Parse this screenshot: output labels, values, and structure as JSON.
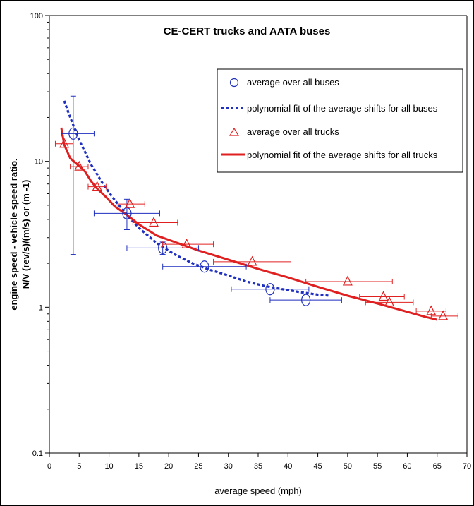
{
  "chart_data": {
    "type": "scatter",
    "title": "CE-CERT trucks and AATA buses",
    "xlabel": "average speed (mph)",
    "ylabel_line1": "engine speed - vehicle speed ratio.",
    "ylabel_line2": "N/V   (rev/s)/(m/s) or (m   -1)",
    "xlim": [
      0,
      70
    ],
    "ylim": [
      0.1,
      100
    ],
    "yscale": "log",
    "grid": false,
    "legend_position": "top-right",
    "x_ticks": [
      0,
      5,
      10,
      15,
      20,
      25,
      30,
      35,
      40,
      45,
      50,
      55,
      60,
      65,
      70
    ],
    "y_ticks": [
      {
        "value": 0.1,
        "label": "0.1"
      },
      {
        "value": 1,
        "label": "1"
      },
      {
        "value": 10,
        "label": "10"
      },
      {
        "value": 100,
        "label": "100"
      }
    ],
    "colors": {
      "buses": "#1f2fbf",
      "trucks": "#e02020"
    },
    "series": [
      {
        "name": "average over all buses",
        "kind": "points",
        "marker": "circle",
        "color": "#1f2fbf",
        "points": [
          {
            "x": 4.0,
            "y": 15.5,
            "xerr": [
              2.0,
              7.5
            ],
            "yerr": [
              2.3,
              28
            ]
          },
          {
            "x": 13.0,
            "y": 4.4,
            "xerr": [
              7.5,
              18.5
            ],
            "yerr": [
              3.4,
              5.5
            ]
          },
          {
            "x": 19.0,
            "y": 2.55,
            "xerr": [
              13.0,
              25.0
            ],
            "yerr": [
              2.3,
              2.8
            ]
          },
          {
            "x": 26.0,
            "y": 1.9,
            "xerr": [
              19.0,
              33.0
            ],
            "yerr": null
          },
          {
            "x": 37.0,
            "y": 1.33,
            "xerr": [
              30.5,
              43.5
            ],
            "yerr": null
          },
          {
            "x": 43.0,
            "y": 1.12,
            "xerr": [
              37.0,
              49.0
            ],
            "yerr": null
          }
        ]
      },
      {
        "name": "polynomial fit of the average shifts for all buses",
        "kind": "line",
        "style": "dashed",
        "color": "#1f2fbf",
        "points": [
          {
            "x": 2.5,
            "y": 26
          },
          {
            "x": 3.5,
            "y": 20
          },
          {
            "x": 5,
            "y": 14
          },
          {
            "x": 7,
            "y": 9.5
          },
          {
            "x": 9,
            "y": 7
          },
          {
            "x": 11,
            "y": 5.4
          },
          {
            "x": 13,
            "y": 4.3
          },
          {
            "x": 15,
            "y": 3.5
          },
          {
            "x": 18,
            "y": 2.75
          },
          {
            "x": 21,
            "y": 2.3
          },
          {
            "x": 24,
            "y": 2.0
          },
          {
            "x": 27,
            "y": 1.8
          },
          {
            "x": 30,
            "y": 1.65
          },
          {
            "x": 33,
            "y": 1.5
          },
          {
            "x": 36,
            "y": 1.4
          },
          {
            "x": 39,
            "y": 1.33
          },
          {
            "x": 42,
            "y": 1.27
          },
          {
            "x": 45,
            "y": 1.22
          },
          {
            "x": 47,
            "y": 1.2
          }
        ]
      },
      {
        "name": "average over all trucks",
        "kind": "points",
        "marker": "triangle",
        "color": "#e02020",
        "points": [
          {
            "x": 2.5,
            "y": 13.2,
            "xerr": [
              1.0,
              4.0
            ],
            "yerr": null
          },
          {
            "x": 5.0,
            "y": 9.2,
            "xerr": [
              3.5,
              6.5
            ],
            "yerr": null
          },
          {
            "x": 8.0,
            "y": 6.7,
            "xerr": [
              6.5,
              9.5
            ],
            "yerr": null
          },
          {
            "x": 13.5,
            "y": 5.1,
            "xerr": [
              11.5,
              16.0
            ],
            "yerr": null
          },
          {
            "x": 17.5,
            "y": 3.8,
            "xerr": [
              14.0,
              21.5
            ],
            "yerr": null
          },
          {
            "x": 23.0,
            "y": 2.7,
            "xerr": [
              19.0,
              27.5
            ],
            "yerr": null
          },
          {
            "x": 34.0,
            "y": 2.05,
            "xerr": [
              27.5,
              40.5
            ],
            "yerr": null
          },
          {
            "x": 50.0,
            "y": 1.5,
            "xerr": [
              43.0,
              57.5
            ],
            "yerr": null
          },
          {
            "x": 56.0,
            "y": 1.18,
            "xerr": [
              52.0,
              59.5
            ],
            "yerr": null
          },
          {
            "x": 57.0,
            "y": 1.08,
            "xerr": [
              53.0,
              61.0
            ],
            "yerr": null
          },
          {
            "x": 64.0,
            "y": 0.94,
            "xerr": [
              61.5,
              66.5
            ],
            "yerr": null
          },
          {
            "x": 66.0,
            "y": 0.87,
            "xerr": [
              64.0,
              68.5
            ],
            "yerr": null
          }
        ]
      },
      {
        "name": "polynomial fit of the average shifts for all trucks",
        "kind": "line",
        "style": "solid",
        "color": "#e02020",
        "points": [
          {
            "x": 2.0,
            "y": 17
          },
          {
            "x": 2.5,
            "y": 13
          },
          {
            "x": 3.5,
            "y": 10.5
          },
          {
            "x": 5,
            "y": 9.3
          },
          {
            "x": 6,
            "y": 8.5
          },
          {
            "x": 7,
            "y": 7.3
          },
          {
            "x": 8,
            "y": 6.5
          },
          {
            "x": 9.5,
            "y": 5.7
          },
          {
            "x": 11,
            "y": 4.9
          },
          {
            "x": 13,
            "y": 4.3
          },
          {
            "x": 15,
            "y": 3.7
          },
          {
            "x": 18,
            "y": 3.1
          },
          {
            "x": 21,
            "y": 2.8
          },
          {
            "x": 25,
            "y": 2.45
          },
          {
            "x": 30,
            "y": 2.12
          },
          {
            "x": 35,
            "y": 1.83
          },
          {
            "x": 40,
            "y": 1.6
          },
          {
            "x": 45,
            "y": 1.38
          },
          {
            "x": 50,
            "y": 1.2
          },
          {
            "x": 55,
            "y": 1.06
          },
          {
            "x": 60,
            "y": 0.93
          },
          {
            "x": 63,
            "y": 0.86
          },
          {
            "x": 65,
            "y": 0.82
          }
        ]
      }
    ]
  }
}
